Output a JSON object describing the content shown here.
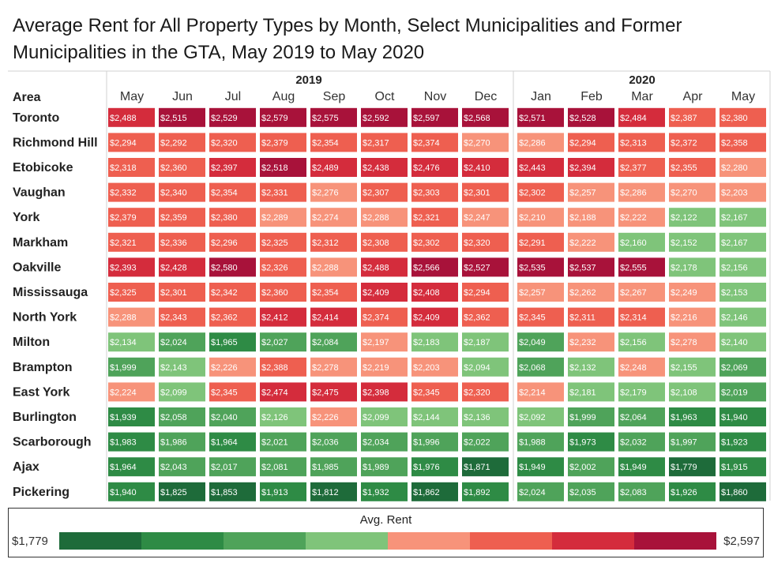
{
  "chart_data": {
    "type": "heatmap",
    "title": "Average Rent for All Property Types by Month, Select Municipalities and Former Municipalities in the GTA, May 2019 to May 2020",
    "row_header": "Area",
    "year_groups": [
      {
        "label": "2019",
        "months": [
          "May",
          "Jun",
          "Jul",
          "Aug",
          "Sep",
          "Oct",
          "Nov",
          "Dec"
        ]
      },
      {
        "label": "2020",
        "months": [
          "Jan",
          "Feb",
          "Mar",
          "Apr",
          "May"
        ]
      }
    ],
    "rows": [
      {
        "area": "Toronto",
        "values": [
          2488,
          2515,
          2529,
          2579,
          2575,
          2592,
          2597,
          2568,
          2571,
          2528,
          2484,
          2387,
          2380
        ]
      },
      {
        "area": "Richmond Hill",
        "values": [
          2294,
          2292,
          2320,
          2379,
          2354,
          2317,
          2374,
          2270,
          2286,
          2294,
          2313,
          2372,
          2358
        ]
      },
      {
        "area": "Etobicoke",
        "values": [
          2318,
          2360,
          2397,
          2518,
          2489,
          2438,
          2476,
          2410,
          2443,
          2394,
          2377,
          2355,
          2280
        ]
      },
      {
        "area": "Vaughan",
        "values": [
          2332,
          2340,
          2354,
          2331,
          2276,
          2307,
          2303,
          2301,
          2302,
          2257,
          2286,
          2270,
          2203
        ]
      },
      {
        "area": "York",
        "values": [
          2379,
          2359,
          2380,
          2289,
          2274,
          2288,
          2321,
          2247,
          2210,
          2188,
          2222,
          2122,
          2167
        ]
      },
      {
        "area": "Markham",
        "values": [
          2321,
          2336,
          2296,
          2325,
          2312,
          2308,
          2302,
          2320,
          2291,
          2222,
          2160,
          2152,
          2167
        ]
      },
      {
        "area": "Oakville",
        "values": [
          2393,
          2428,
          2580,
          2326,
          2288,
          2488,
          2566,
          2527,
          2535,
          2537,
          2555,
          2178,
          2156
        ]
      },
      {
        "area": "Mississauga",
        "values": [
          2325,
          2301,
          2342,
          2360,
          2354,
          2409,
          2408,
          2294,
          2257,
          2262,
          2267,
          2249,
          2153
        ]
      },
      {
        "area": "North York",
        "values": [
          2288,
          2343,
          2362,
          2412,
          2414,
          2374,
          2409,
          2362,
          2345,
          2311,
          2314,
          2216,
          2146
        ]
      },
      {
        "area": "Milton",
        "values": [
          2134,
          2024,
          1965,
          2027,
          2084,
          2197,
          2183,
          2187,
          2049,
          2232,
          2156,
          2278,
          2140
        ]
      },
      {
        "area": "Brampton",
        "values": [
          1999,
          2143,
          2226,
          2388,
          2278,
          2219,
          2203,
          2094,
          2068,
          2132,
          2248,
          2155,
          2069
        ]
      },
      {
        "area": "East York",
        "values": [
          2224,
          2099,
          2345,
          2474,
          2475,
          2398,
          2345,
          2320,
          2214,
          2181,
          2179,
          2108,
          2019
        ]
      },
      {
        "area": "Burlington",
        "values": [
          1939,
          2058,
          2040,
          2126,
          2226,
          2099,
          2144,
          2136,
          2092,
          1999,
          2064,
          1963,
          1940
        ]
      },
      {
        "area": "Scarborough",
        "values": [
          1983,
          1986,
          1964,
          2021,
          2036,
          2034,
          1996,
          2022,
          1988,
          1973,
          2032,
          1997,
          1923
        ]
      },
      {
        "area": "Ajax",
        "values": [
          1964,
          2043,
          2017,
          2081,
          1985,
          1989,
          1976,
          1871,
          1949,
          2002,
          1949,
          1779,
          1915
        ]
      },
      {
        "area": "Pickering",
        "values": [
          1940,
          1825,
          1853,
          1913,
          1812,
          1932,
          1862,
          1892,
          2024,
          2035,
          2083,
          1926,
          1860
        ]
      }
    ],
    "value_prefix": "$",
    "color_min": 1779,
    "color_max": 2597,
    "palette": [
      "#1e6b3a",
      "#2e8b45",
      "#4fa35a",
      "#7fc47a",
      "#f7937a",
      "#ee5f50",
      "#d42c3c",
      "#a8123a"
    ]
  },
  "legend": {
    "title": "Avg. Rent",
    "min_label": "$1,779",
    "max_label": "$2,597"
  }
}
